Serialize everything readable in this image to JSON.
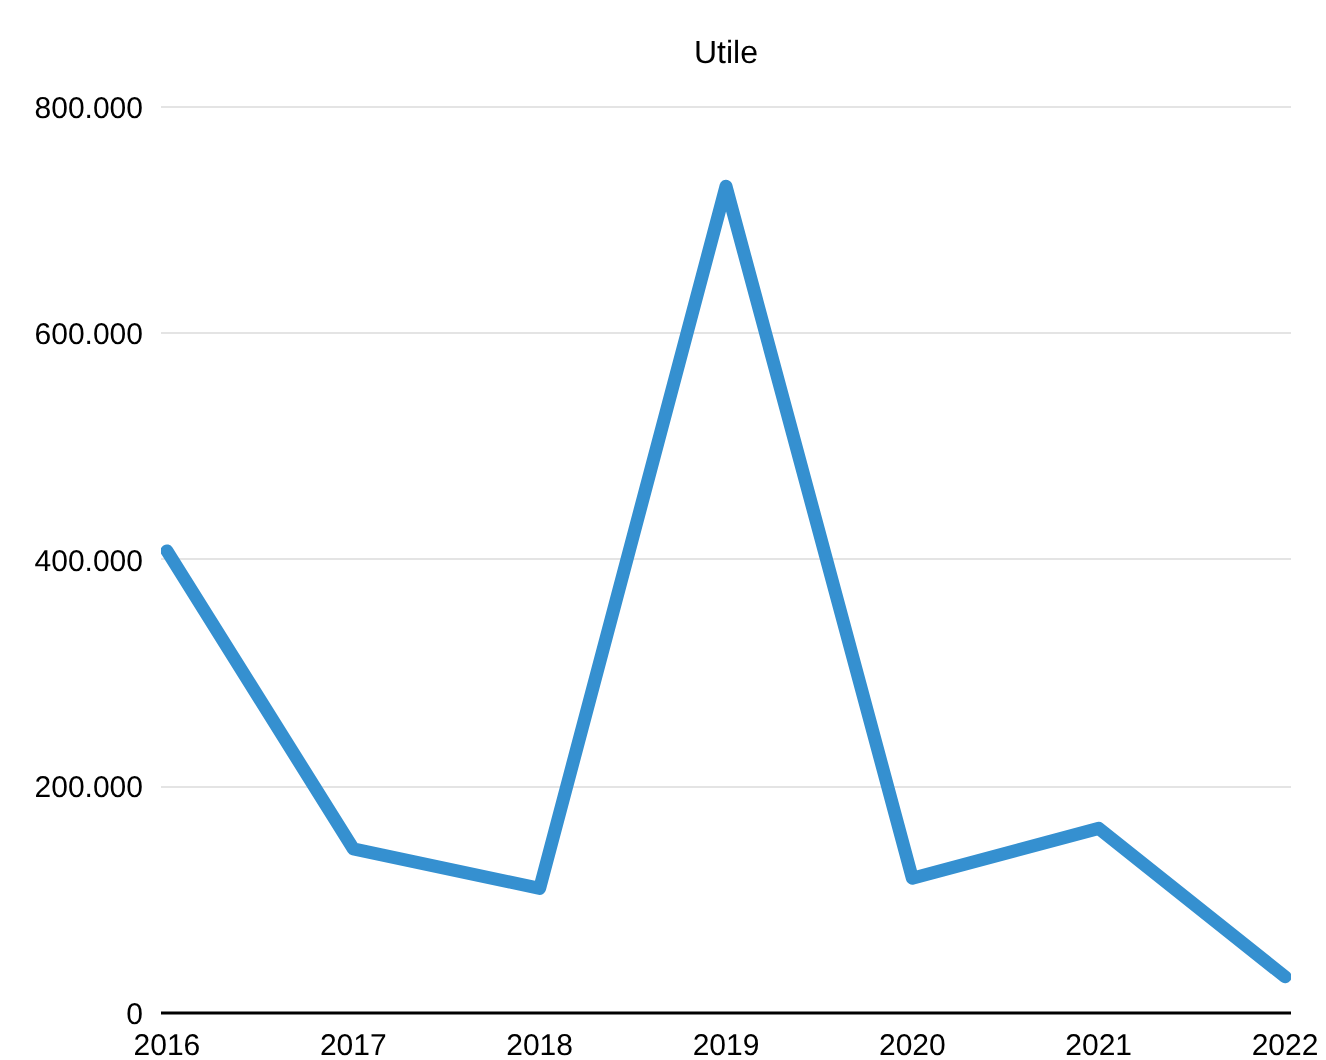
{
  "chart_data": {
    "type": "line",
    "title": "Utile",
    "categories": [
      "2016",
      "2017",
      "2018",
      "2019",
      "2020",
      "2021",
      "2022"
    ],
    "series": [
      {
        "color": "#3590d0",
        "values": [
          408000,
          145000,
          110000,
          730000,
          119000,
          163000,
          32000
        ]
      }
    ],
    "ylim": [
      0,
      800000
    ],
    "yticks": [
      0,
      {
        "value": 200000,
        "label": "200.000"
      },
      {
        "value": 400000,
        "label": "400.000"
      },
      {
        "value": 600000,
        "label": "600.000"
      },
      {
        "value": 800000,
        "label": "800.000"
      }
    ],
    "grid": "y",
    "marker": "none",
    "line_style": "solid"
  }
}
